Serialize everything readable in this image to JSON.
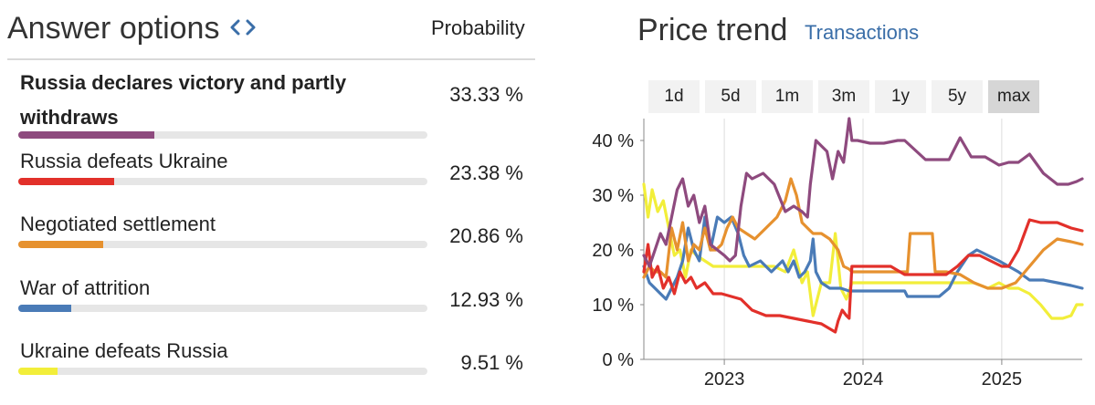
{
  "left": {
    "title": "Answer options",
    "probability_header": "Probability",
    "options": [
      {
        "label": "Russia declares victory and partly withdraws",
        "prob": "33.33 %",
        "value": 33.33,
        "color": "#8e4a7e",
        "bold": true
      },
      {
        "label": "Russia defeats Ukraine",
        "prob": "23.38 %",
        "value": 23.38,
        "color": "#e2302a",
        "bold": false
      },
      {
        "label": "Negotiated settlement",
        "prob": "20.86 %",
        "value": 20.86,
        "color": "#e6912f",
        "bold": false
      },
      {
        "label": "War of attrition",
        "prob": "12.93 %",
        "value": 12.93,
        "color": "#4a7bb7",
        "bold": false
      },
      {
        "label": "Ukraine defeats Russia",
        "prob": "9.51 %",
        "value": 9.51,
        "color": "#f2ee3a",
        "bold": false
      }
    ]
  },
  "right": {
    "title": "Price trend",
    "transactions_tab": "Transactions",
    "ranges": [
      "1d",
      "5d",
      "1m",
      "3m",
      "1y",
      "5y",
      "max"
    ],
    "active_range": "max"
  },
  "chart_data": {
    "type": "line",
    "x_range": [
      2022.42,
      2025.58
    ],
    "y_range": [
      0,
      44
    ],
    "y_ticks": [
      0,
      10,
      20,
      30,
      40
    ],
    "y_tick_labels": [
      "0 %",
      "10 %",
      "20 %",
      "30 %",
      "40 %"
    ],
    "x_ticks": [
      2023,
      2024,
      2025
    ],
    "x_tick_labels": [
      "2023",
      "2024",
      "2025"
    ],
    "grid": "vertical at year ticks",
    "series": [
      {
        "name": "Russia declares victory and partly withdraws",
        "color": "#8e4a7e",
        "x": [
          2022.42,
          2022.46,
          2022.5,
          2022.54,
          2022.58,
          2022.62,
          2022.66,
          2022.7,
          2022.74,
          2022.78,
          2022.82,
          2022.86,
          2022.9,
          2022.95,
          2023.0,
          2023.04,
          2023.08,
          2023.12,
          2023.16,
          2023.2,
          2023.28,
          2023.36,
          2023.44,
          2023.5,
          2023.56,
          2023.6,
          2023.62,
          2023.66,
          2023.7,
          2023.74,
          2023.78,
          2023.82,
          2023.86,
          2023.88,
          2023.9,
          2023.92,
          2023.96,
          2024.05,
          2024.15,
          2024.25,
          2024.3,
          2024.45,
          2024.55,
          2024.62,
          2024.7,
          2024.78,
          2024.88,
          2024.98,
          2025.05,
          2025.12,
          2025.2,
          2025.3,
          2025.4,
          2025.48,
          2025.54,
          2025.58
        ],
        "y": [
          19,
          17,
          20,
          23,
          21,
          26,
          31,
          33,
          28,
          30,
          25,
          28,
          21,
          20,
          19,
          18,
          19,
          28,
          34,
          33,
          34,
          32,
          27,
          28,
          27,
          26,
          32,
          40,
          39,
          38,
          33,
          38,
          36,
          40,
          44,
          40,
          40,
          39.5,
          39.5,
          40,
          40,
          36.5,
          36.5,
          36.5,
          40.5,
          37,
          37,
          35.5,
          36,
          36,
          37.5,
          34,
          32,
          32,
          32.5,
          33
        ]
      },
      {
        "name": "Russia defeats Ukraine",
        "color": "#e2302a",
        "x": [
          2022.42,
          2022.45,
          2022.48,
          2022.52,
          2022.56,
          2022.6,
          2022.64,
          2022.68,
          2022.72,
          2022.76,
          2022.8,
          2022.86,
          2022.92,
          2022.98,
          2023.05,
          2023.12,
          2023.2,
          2023.3,
          2023.4,
          2023.5,
          2023.6,
          2023.7,
          2023.8,
          2023.82,
          2023.85,
          2023.88,
          2023.9,
          2023.92,
          2024.0,
          2024.1,
          2024.2,
          2024.3,
          2024.4,
          2024.5,
          2024.6,
          2024.68,
          2024.76,
          2024.84,
          2024.92,
          2025.0,
          2025.05,
          2025.12,
          2025.2,
          2025.28,
          2025.4,
          2025.5,
          2025.58
        ],
        "y": [
          16,
          21,
          15,
          17,
          13,
          15,
          12,
          16,
          14,
          15,
          13,
          14,
          12,
          12,
          11.5,
          11,
          9,
          8,
          8,
          7.5,
          7,
          6.5,
          5,
          7,
          9,
          8,
          7.5,
          17,
          17,
          17,
          17,
          15.5,
          15.5,
          15.5,
          15.5,
          17,
          19,
          19,
          18,
          17,
          17,
          20,
          25.5,
          25,
          25,
          24,
          23.5
        ]
      },
      {
        "name": "Negotiated settlement",
        "color": "#e6912f",
        "x": [
          2022.42,
          2022.46,
          2022.5,
          2022.54,
          2022.58,
          2022.62,
          2022.66,
          2022.7,
          2022.74,
          2022.78,
          2022.82,
          2022.86,
          2022.9,
          2022.94,
          2022.98,
          2023.02,
          2023.06,
          2023.1,
          2023.16,
          2023.22,
          2023.3,
          2023.38,
          2023.44,
          2023.48,
          2023.52,
          2023.56,
          2023.6,
          2023.64,
          2023.7,
          2023.76,
          2023.82,
          2023.86,
          2023.9,
          2023.92,
          2024.0,
          2024.1,
          2024.2,
          2024.28,
          2024.32,
          2024.34,
          2024.45,
          2024.5,
          2024.52,
          2024.6,
          2024.7,
          2024.8,
          2024.9,
          2025.0,
          2025.1,
          2025.2,
          2025.3,
          2025.4,
          2025.5,
          2025.58
        ],
        "y": [
          15,
          17,
          16,
          16,
          15,
          24,
          20,
          25,
          18,
          21,
          20,
          24,
          20,
          20,
          21,
          24,
          26,
          24,
          23,
          22,
          24,
          26,
          29,
          33,
          30,
          25,
          24,
          23,
          23,
          22,
          20,
          17,
          16.5,
          16,
          16,
          16,
          16,
          16,
          16,
          23,
          23,
          23,
          16,
          16,
          15.5,
          14,
          13,
          13,
          14,
          17,
          20,
          22,
          21.5,
          21
        ]
      },
      {
        "name": "War of attrition",
        "color": "#4a7bb7",
        "x": [
          2022.42,
          2022.46,
          2022.5,
          2022.54,
          2022.58,
          2022.62,
          2022.66,
          2022.7,
          2022.74,
          2022.78,
          2022.82,
          2022.86,
          2022.9,
          2022.95,
          2023.0,
          2023.05,
          2023.1,
          2023.14,
          2023.18,
          2023.26,
          2023.34,
          2023.42,
          2023.46,
          2023.5,
          2023.54,
          2023.58,
          2023.62,
          2023.64,
          2023.66,
          2023.7,
          2023.76,
          2023.84,
          2023.9,
          2023.92,
          2024.0,
          2024.1,
          2024.2,
          2024.3,
          2024.32,
          2024.45,
          2024.55,
          2024.62,
          2024.68,
          2024.76,
          2024.82,
          2024.9,
          2024.98,
          2025.05,
          2025.12,
          2025.2,
          2025.3,
          2025.4,
          2025.5,
          2025.58
        ],
        "y": [
          17,
          14,
          13,
          12,
          11,
          13,
          15,
          18,
          24,
          20,
          18,
          26,
          20,
          26,
          25,
          26,
          23,
          19,
          17,
          18,
          16,
          18,
          16,
          18,
          15,
          16,
          18,
          22,
          16,
          14,
          13,
          13,
          12.5,
          12.5,
          12.5,
          12.5,
          12.5,
          12.5,
          11.5,
          11.5,
          11.5,
          13,
          16,
          19,
          20,
          19,
          18,
          17,
          16,
          14.5,
          14.5,
          14,
          13.5,
          13
        ]
      },
      {
        "name": "Ukraine defeats Russia",
        "color": "#f2ee3a",
        "x": [
          2022.42,
          2022.45,
          2022.48,
          2022.52,
          2022.56,
          2022.6,
          2022.64,
          2022.68,
          2022.72,
          2022.76,
          2022.8,
          2022.86,
          2022.92,
          2022.98,
          2023.05,
          2023.12,
          2023.2,
          2023.28,
          2023.36,
          2023.44,
          2023.5,
          2023.56,
          2023.6,
          2023.64,
          2023.7,
          2023.76,
          2023.8,
          2023.84,
          2023.88,
          2023.92,
          2024.0,
          2024.1,
          2024.2,
          2024.3,
          2024.4,
          2024.5,
          2024.6,
          2024.7,
          2024.8,
          2024.9,
          2024.98,
          2025.05,
          2025.12,
          2025.2,
          2025.28,
          2025.36,
          2025.44,
          2025.5,
          2025.54,
          2025.58
        ],
        "y": [
          32,
          26,
          31,
          27,
          29,
          24,
          19,
          20,
          15,
          20,
          19,
          18,
          17,
          17,
          17,
          17,
          17,
          17,
          17,
          16,
          20,
          14,
          16,
          8,
          14,
          14,
          23,
          13,
          11,
          14,
          14,
          14,
          14,
          14,
          14,
          14,
          14,
          14,
          14,
          13,
          14,
          13,
          13,
          12,
          10,
          7.5,
          7.5,
          8,
          10,
          10
        ]
      }
    ]
  }
}
